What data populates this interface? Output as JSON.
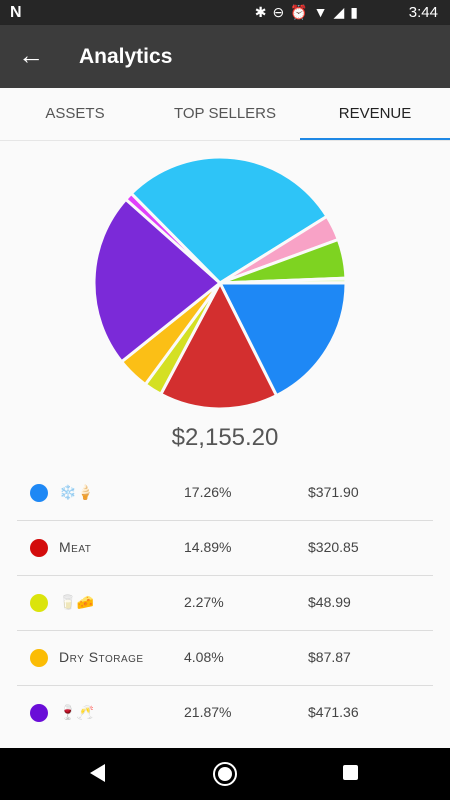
{
  "status_bar": {
    "time": "3:44",
    "left_icon": "N",
    "icons": [
      "bluetooth-icon",
      "do-not-disturb-icon",
      "alarm-icon",
      "wifi-icon",
      "signal-icon",
      "battery-icon"
    ]
  },
  "app_bar": {
    "title": "Analytics"
  },
  "tabs": [
    {
      "label": "ASSETS",
      "active": false
    },
    {
      "label": "TOP SELLERS",
      "active": false
    },
    {
      "label": "REVENUE",
      "active": true
    }
  ],
  "chart_data": {
    "type": "pie",
    "title": "",
    "slices": [
      {
        "label": "❄️🍦",
        "value": 17.26,
        "color": "#1e88f5"
      },
      {
        "label": "Meat",
        "value": 14.89,
        "color": "#d32f2f"
      },
      {
        "label": "🥛🧀",
        "value": 2.27,
        "color": "#d4e023"
      },
      {
        "label": "Dry Storage",
        "value": 4.08,
        "color": "#fbbf16"
      },
      {
        "label": "🍷🥂",
        "value": 21.87,
        "color": "#7b2ad8"
      },
      {
        "label": "",
        "value": 1.0,
        "color": "#e040fb"
      },
      {
        "label": "",
        "value": 28.0,
        "color": "#2ec4f7"
      },
      {
        "label": "",
        "value": 3.2,
        "color": "#f8a2c6"
      },
      {
        "label": "",
        "value": 4.9,
        "color": "#7ed321"
      },
      {
        "label": "",
        "value": 0.6,
        "color": "#e8f8d0"
      }
    ]
  },
  "total": "$2,155.20",
  "rows": [
    {
      "name": "❄️🍦",
      "pct": "17.26%",
      "amount": "$371.90",
      "color": "#1e88f5"
    },
    {
      "name": "Meat",
      "pct": "14.89%",
      "amount": "$320.85",
      "color": "#d30c0c"
    },
    {
      "name": "🥛🧀",
      "pct": "2.27%",
      "amount": "$48.99",
      "color": "#dbe40c"
    },
    {
      "name": "Dry Storage",
      "pct": "4.08%",
      "amount": "$87.87",
      "color": "#fbbc05"
    },
    {
      "name": "🍷🥂",
      "pct": "21.87%",
      "amount": "$471.36",
      "color": "#6a0dd8"
    }
  ]
}
